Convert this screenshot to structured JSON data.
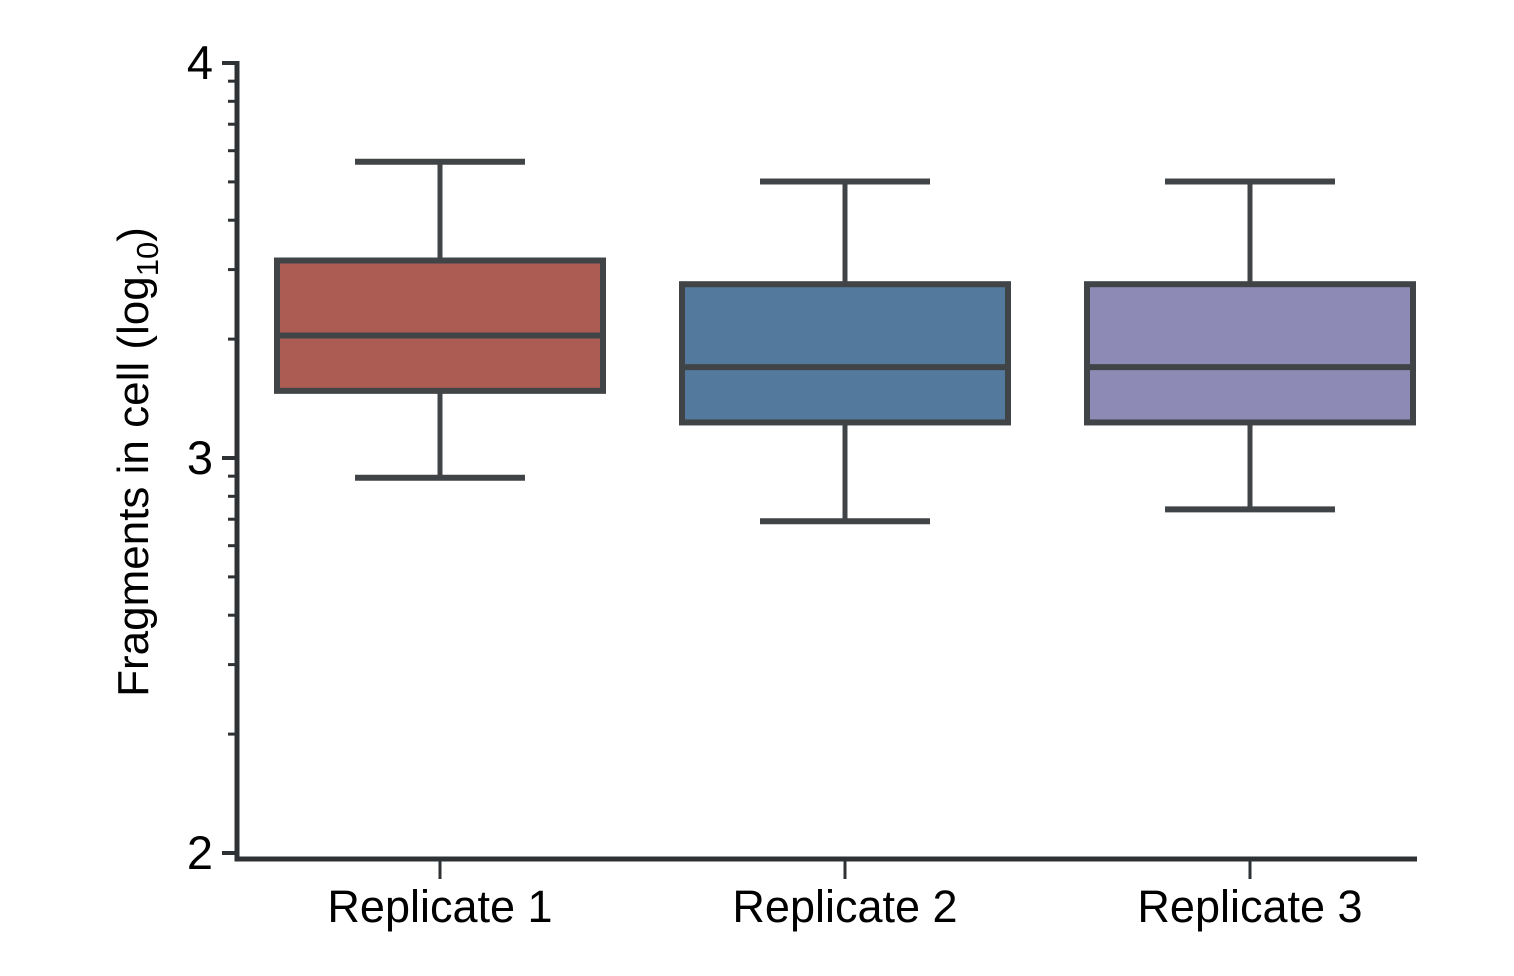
{
  "figure": {
    "background": "#ffffff"
  },
  "chart_data": {
    "type": "box",
    "title": "",
    "xlabel": "",
    "ylabel": "Fragments in cell (log10)",
    "ylabel_parts": {
      "pre": "Fragments in cell (log",
      "sub": "10",
      "post": ")"
    },
    "categories": [
      "Replicate 1",
      "Replicate 2",
      "Replicate 3"
    ],
    "y_axis": {
      "scale": "log10",
      "min": 2,
      "max": 4,
      "major_ticks": [
        4,
        3,
        2
      ],
      "major_tick_labels": [
        "4",
        "3",
        "2"
      ],
      "minor_tick_offsets": [
        0.301,
        0.477,
        0.602,
        0.699,
        0.778,
        0.845,
        0.903,
        0.954
      ],
      "grid": false
    },
    "legend": null,
    "series": [
      {
        "name": "Replicate 1",
        "color": "#ad5c54",
        "whisker_low": 2.95,
        "q1": 3.17,
        "median": 3.31,
        "q3": 3.5,
        "whisker_high": 3.75
      },
      {
        "name": "Replicate 2",
        "color": "#53799c",
        "whisker_low": 2.84,
        "q1": 3.09,
        "median": 3.23,
        "q3": 3.44,
        "whisker_high": 3.7
      },
      {
        "name": "Replicate 3",
        "color": "#8d8bb5",
        "whisker_low": 2.87,
        "q1": 3.09,
        "median": 3.23,
        "q3": 3.44,
        "whisker_high": 3.7
      }
    ],
    "style": {
      "box_stroke": "#404447",
      "whisker_stroke": "#404447",
      "axis_color": "#2f3235",
      "text_color": "#000000"
    }
  }
}
